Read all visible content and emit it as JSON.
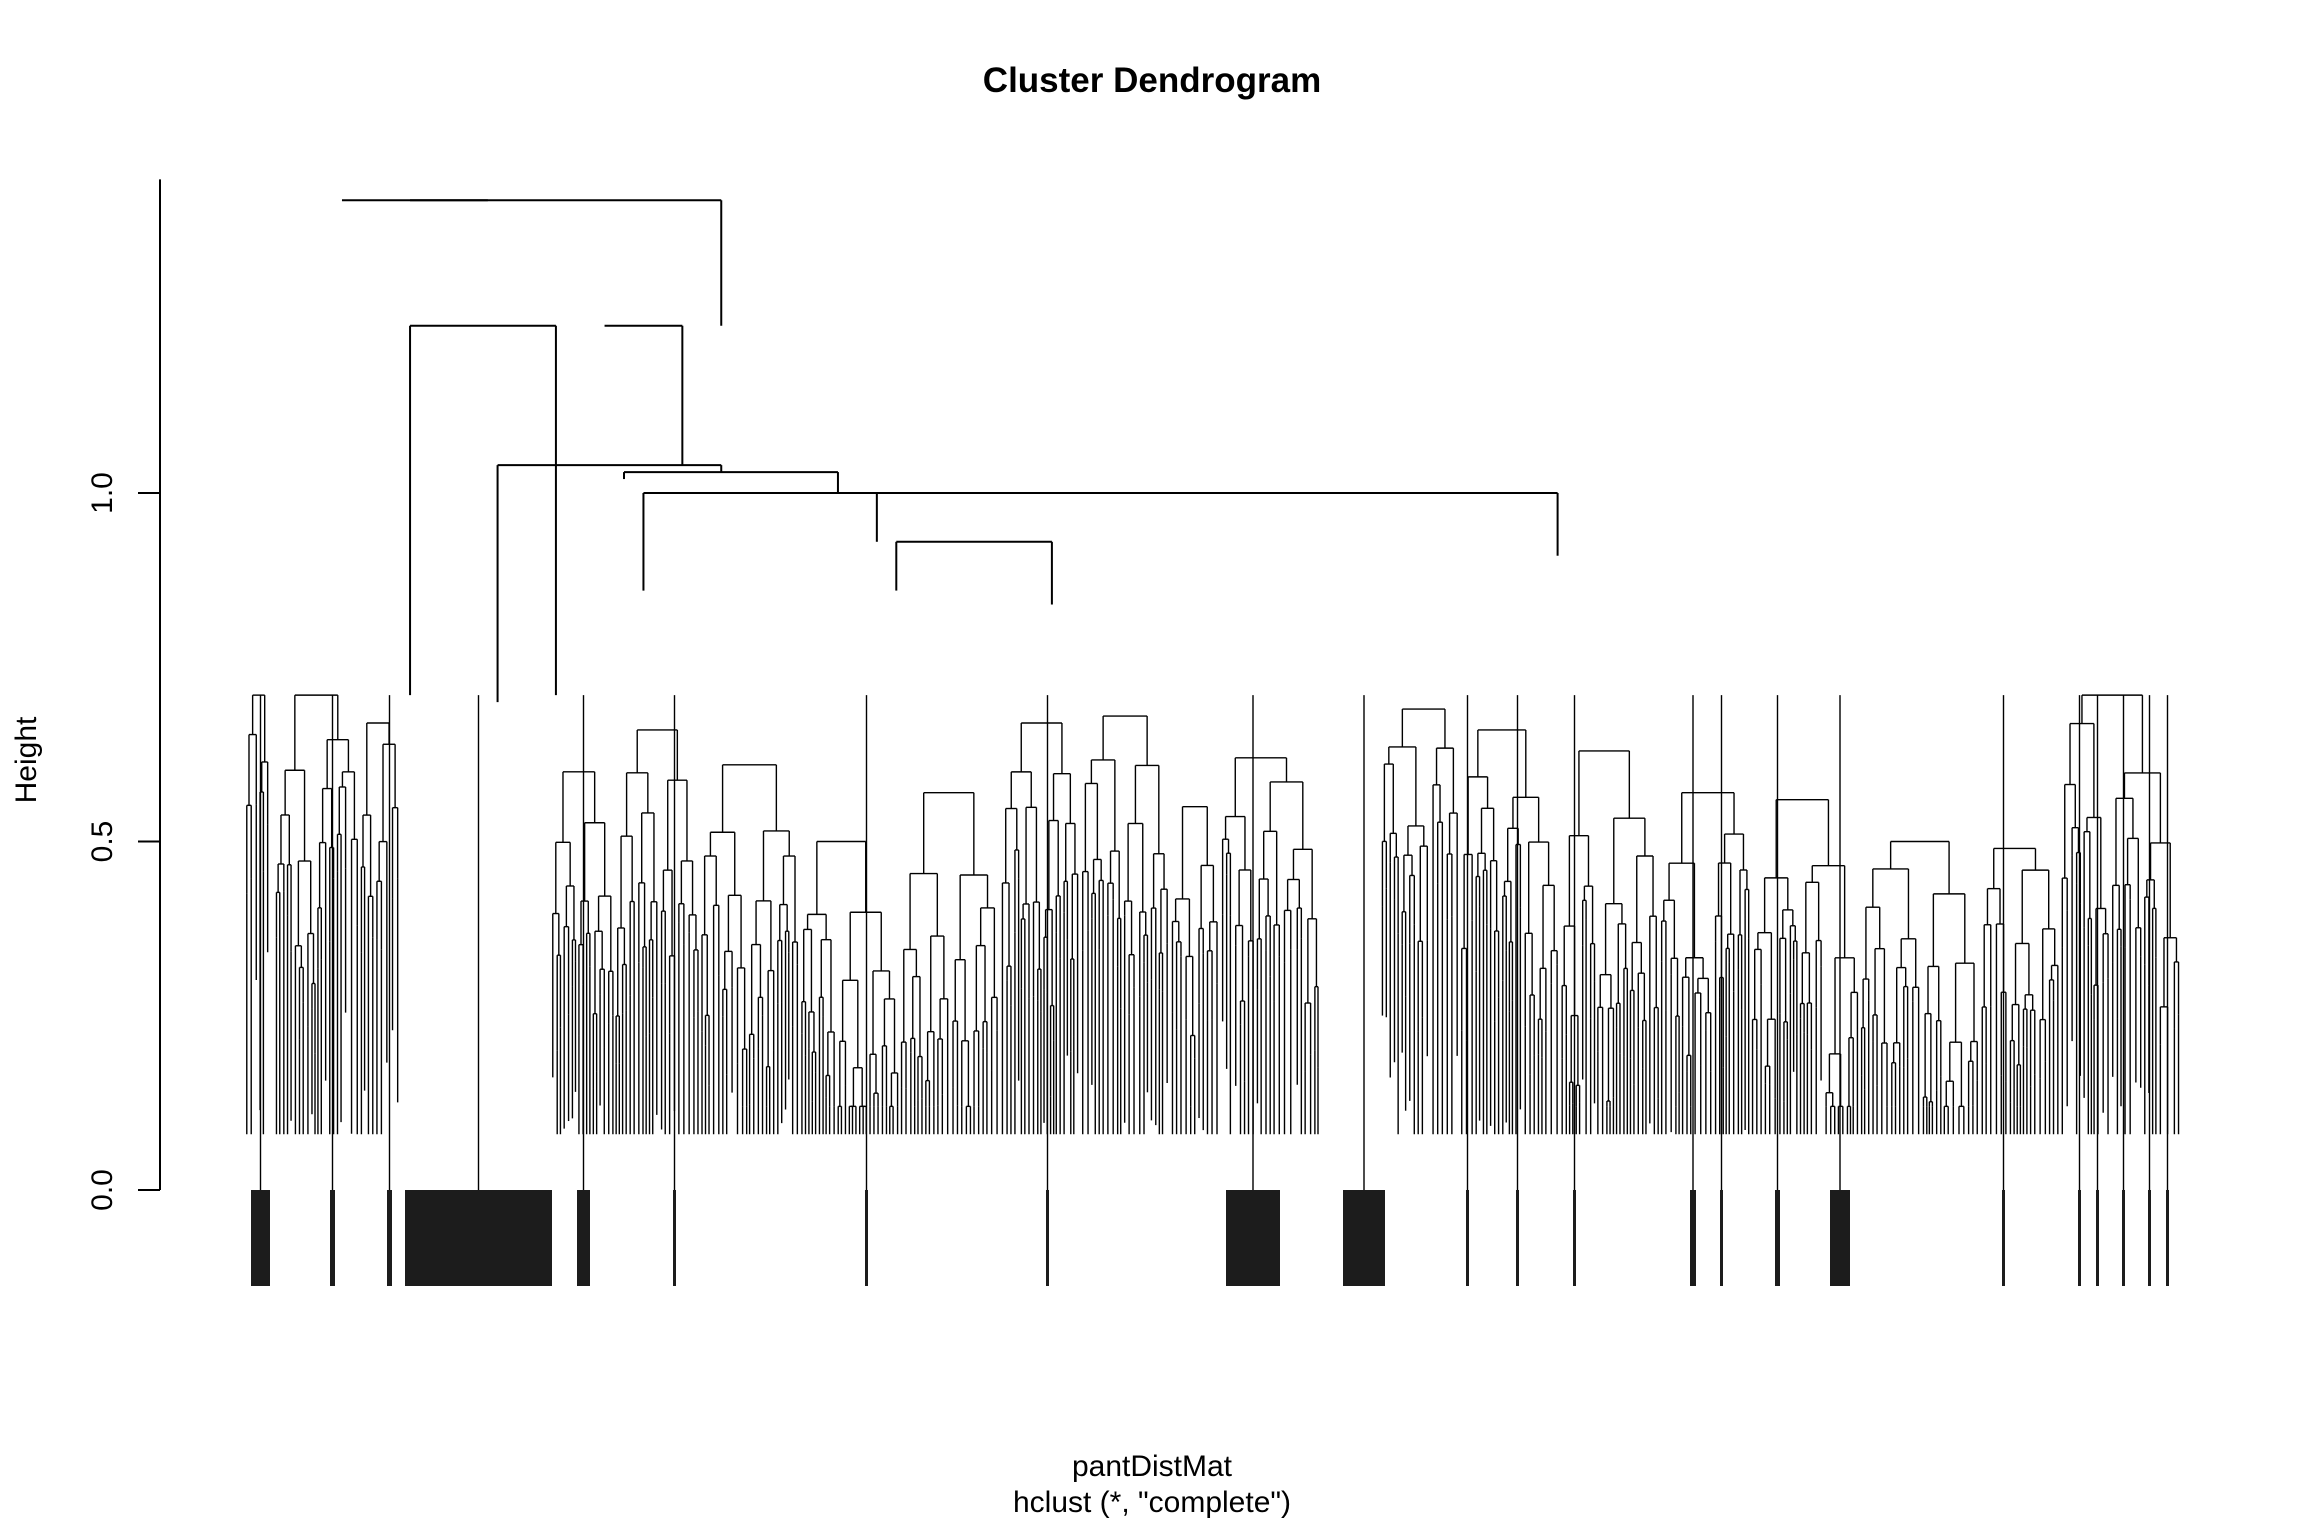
{
  "chart_data": {
    "type": "dendrogram",
    "title": "Cluster Dendrogram",
    "xlabel": "pantDistMat",
    "sub": "hclust (*, \"complete\")",
    "ylabel": "Height",
    "ylim": [
      0,
      1.45
    ],
    "yticks": [
      "0.0",
      "0.5",
      "1.0"
    ],
    "ytick_values": [
      0,
      0.5,
      1.0
    ],
    "main_merges": [
      {
        "left": [
          0.055,
          1.42
        ],
        "right": [
          0.13,
          1.42
        ],
        "height": 1.42
      },
      {
        "left": [
          0.09,
          1.42
        ],
        "right": [
          0.25,
          1.24
        ],
        "height": 1.42
      },
      {
        "left": [
          0.09,
          0.71
        ],
        "right": [
          0.165,
          0.71
        ],
        "height": 1.24
      },
      {
        "left": [
          0.23,
          1.04
        ],
        "right": [
          0.19,
          1.24
        ],
        "height": 1.24
      },
      {
        "left": [
          0.135,
          0.7
        ],
        "right": [
          0.25,
          1.03
        ],
        "height": 1.04
      },
      {
        "left": [
          0.2,
          1.02
        ],
        "right": [
          0.31,
          1.0
        ],
        "height": 1.03
      },
      {
        "left": [
          0.21,
          0.86
        ],
        "right": [
          0.505,
          1.0
        ],
        "height": 1.0
      },
      {
        "left": [
          0.33,
          0.93
        ],
        "right": [
          0.68,
          0.91
        ],
        "height": 1.0
      },
      {
        "left": [
          0.34,
          0.86
        ],
        "right": [
          0.42,
          0.84
        ],
        "height": 0.93
      }
    ]
  }
}
